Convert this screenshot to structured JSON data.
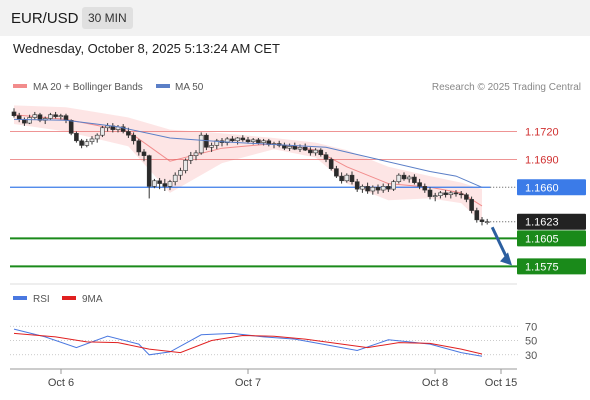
{
  "header": {
    "symbol": "EUR/USD",
    "timeframe": "30 MIN"
  },
  "timestamp": "Wednesday, October 8, 2025 5:13:24 AM CET",
  "legend": {
    "bollinger": "MA 20 + Bollinger Bands",
    "ma50": "MA 50",
    "copyright": "Research © 2025 Trading Central"
  },
  "colors": {
    "up": "#e8e8e8",
    "down": "#2a2a2a",
    "ma20": "#f28c8c",
    "ma50": "#5b7fc7",
    "band": "#fcdcdc",
    "resistance": "#e87070",
    "pivot": "#3b7be8",
    "support": "#1a8a1a",
    "rsi": "#4a78e0",
    "rsi_ma": "#e02020",
    "arrow": "#2c5fa0"
  },
  "chart_data": [
    {
      "type": "candlestick",
      "price_range": [
        1.1556,
        1.1756
      ],
      "x_labels": [
        "Oct 6",
        "Oct 7",
        "Oct 8",
        "Oct 15"
      ],
      "series": [
        {
          "name": "MA 20 + Bollinger Bands"
        },
        {
          "name": "MA 50"
        }
      ],
      "candles": [
        [
          1.1741,
          1.1745,
          1.1735,
          1.1737
        ],
        [
          1.1737,
          1.174,
          1.173,
          1.1733
        ],
        [
          1.1733,
          1.1735,
          1.1726,
          1.1729
        ],
        [
          1.1729,
          1.1738,
          1.1728,
          1.1735
        ],
        [
          1.1735,
          1.1741,
          1.1733,
          1.1738
        ],
        [
          1.1738,
          1.174,
          1.173,
          1.1732
        ],
        [
          1.1732,
          1.1736,
          1.1728,
          1.1734
        ],
        [
          1.1734,
          1.174,
          1.1732,
          1.1738
        ],
        [
          1.1738,
          1.1741,
          1.1734,
          1.1736
        ],
        [
          1.1736,
          1.1739,
          1.1733,
          1.1737
        ],
        [
          1.1737,
          1.1739,
          1.1729,
          1.1732
        ],
        [
          1.1732,
          1.1733,
          1.1716,
          1.1718
        ],
        [
          1.1718,
          1.172,
          1.1708,
          1.171
        ],
        [
          1.171,
          1.1712,
          1.1702,
          1.1705
        ],
        [
          1.1705,
          1.1712,
          1.1703,
          1.1709
        ],
        [
          1.1709,
          1.1715,
          1.1706,
          1.1712
        ],
        [
          1.1712,
          1.1718,
          1.1708,
          1.1716
        ],
        [
          1.1716,
          1.1726,
          1.1714,
          1.1724
        ],
        [
          1.1724,
          1.1729,
          1.172,
          1.1726
        ],
        [
          1.1726,
          1.1729,
          1.1719,
          1.1722
        ],
        [
          1.1722,
          1.1727,
          1.1719,
          1.1725
        ],
        [
          1.1725,
          1.1728,
          1.1718,
          1.172
        ],
        [
          1.172,
          1.1724,
          1.1713,
          1.1716
        ],
        [
          1.1716,
          1.1719,
          1.1706,
          1.171
        ],
        [
          1.171,
          1.1712,
          1.1694,
          1.1698
        ],
        [
          1.1698,
          1.1701,
          1.1688,
          1.1694
        ],
        [
          1.1694,
          1.1695,
          1.1648,
          1.1661
        ],
        [
          1.1661,
          1.1669,
          1.1659,
          1.1667
        ],
        [
          1.1667,
          1.167,
          1.1658,
          1.1664
        ],
        [
          1.1664,
          1.1669,
          1.1656,
          1.1661
        ],
        [
          1.1661,
          1.1668,
          1.1657,
          1.1666
        ],
        [
          1.1666,
          1.1676,
          1.1662,
          1.1673
        ],
        [
          1.1673,
          1.1681,
          1.1668,
          1.1678
        ],
        [
          1.1678,
          1.1691,
          1.1675,
          1.1689
        ],
        [
          1.1689,
          1.1698,
          1.1685,
          1.1694
        ],
        [
          1.1694,
          1.17,
          1.1689,
          1.1697
        ],
        [
          1.1697,
          1.1719,
          1.1695,
          1.1716
        ],
        [
          1.1716,
          1.1718,
          1.17,
          1.1703
        ],
        [
          1.1703,
          1.1708,
          1.1698,
          1.1705
        ],
        [
          1.1705,
          1.1712,
          1.1701,
          1.171
        ],
        [
          1.171,
          1.1713,
          1.1704,
          1.1708
        ],
        [
          1.1708,
          1.1714,
          1.1705,
          1.1712
        ],
        [
          1.1712,
          1.1715,
          1.1708,
          1.171
        ],
        [
          1.171,
          1.1714,
          1.1706,
          1.1713
        ],
        [
          1.1713,
          1.1716,
          1.1709,
          1.1711
        ],
        [
          1.1711,
          1.1714,
          1.1707,
          1.1709
        ],
        [
          1.1709,
          1.1713,
          1.1706,
          1.1711
        ],
        [
          1.1711,
          1.1713,
          1.1706,
          1.1708
        ],
        [
          1.1708,
          1.1712,
          1.1705,
          1.171
        ],
        [
          1.171,
          1.1712,
          1.1704,
          1.1706
        ],
        [
          1.1706,
          1.1709,
          1.1702,
          1.1707
        ],
        [
          1.1707,
          1.171,
          1.1703,
          1.1705
        ],
        [
          1.1705,
          1.1708,
          1.17,
          1.1702
        ],
        [
          1.1702,
          1.1707,
          1.1699,
          1.1704
        ],
        [
          1.1704,
          1.1708,
          1.17,
          1.1701
        ],
        [
          1.1701,
          1.1706,
          1.1698,
          1.1703
        ],
        [
          1.1703,
          1.1707,
          1.1699,
          1.17
        ],
        [
          1.17,
          1.1703,
          1.1694,
          1.1697
        ],
        [
          1.1697,
          1.1702,
          1.1694,
          1.17
        ],
        [
          1.17,
          1.1702,
          1.1693,
          1.1695
        ],
        [
          1.1695,
          1.1698,
          1.1687,
          1.169
        ],
        [
          1.169,
          1.1692,
          1.1678,
          1.168
        ],
        [
          1.168,
          1.1683,
          1.167,
          1.1672
        ],
        [
          1.1672,
          1.1676,
          1.1664,
          1.1667
        ],
        [
          1.1667,
          1.1675,
          1.1665,
          1.1673
        ],
        [
          1.1673,
          1.1677,
          1.1663,
          1.1666
        ],
        [
          1.1666,
          1.1669,
          1.1655,
          1.1658
        ],
        [
          1.1658,
          1.1663,
          1.1654,
          1.1661
        ],
        [
          1.1661,
          1.1665,
          1.1653,
          1.1656
        ],
        [
          1.1656,
          1.1662,
          1.1652,
          1.166
        ],
        [
          1.166,
          1.1663,
          1.1653,
          1.1657
        ],
        [
          1.1657,
          1.1664,
          1.1654,
          1.1661
        ],
        [
          1.1661,
          1.1664,
          1.1655,
          1.1658
        ],
        [
          1.1658,
          1.1668,
          1.1656,
          1.1666
        ],
        [
          1.1666,
          1.1675,
          1.1664,
          1.1673
        ],
        [
          1.1673,
          1.1676,
          1.1667,
          1.1669
        ],
        [
          1.1669,
          1.1673,
          1.1665,
          1.1671
        ],
        [
          1.1671,
          1.1674,
          1.1663,
          1.1665
        ],
        [
          1.1665,
          1.1669,
          1.1658,
          1.1661
        ],
        [
          1.1661,
          1.1664,
          1.1654,
          1.1657
        ],
        [
          1.1657,
          1.166,
          1.1647,
          1.165
        ],
        [
          1.165,
          1.1654,
          1.1645,
          1.1651
        ],
        [
          1.1651,
          1.1656,
          1.1648,
          1.1654
        ],
        [
          1.1654,
          1.1657,
          1.1649,
          1.1652
        ],
        [
          1.1652,
          1.1656,
          1.1648,
          1.1654
        ],
        [
          1.1654,
          1.1657,
          1.165,
          1.1653
        ],
        [
          1.1653,
          1.1656,
          1.1648,
          1.1652
        ],
        [
          1.1652,
          1.1654,
          1.1644,
          1.1647
        ],
        [
          1.1647,
          1.165,
          1.1632,
          1.1635
        ],
        [
          1.1635,
          1.1638,
          1.1622,
          1.1625
        ],
        [
          1.1625,
          1.1628,
          1.1619,
          1.1623
        ],
        [
          1.1623,
          1.1626,
          1.162,
          1.1623
        ]
      ],
      "bands": {
        "x_index": [
          0,
          10,
          22,
          30,
          40,
          50,
          58,
          64,
          72,
          80,
          86,
          90
        ],
        "mid": [
          1.1738,
          1.1733,
          1.172,
          1.1688,
          1.1702,
          1.1707,
          1.17,
          1.1682,
          1.1664,
          1.166,
          1.1654,
          1.164
        ],
        "upper": [
          1.1748,
          1.1746,
          1.1735,
          1.1722,
          1.1718,
          1.1713,
          1.1708,
          1.17,
          1.1682,
          1.1672,
          1.1665,
          1.1658
        ],
        "lower": [
          1.1728,
          1.172,
          1.1704,
          1.1654,
          1.1686,
          1.1701,
          1.1692,
          1.1664,
          1.1646,
          1.1648,
          1.1643,
          1.1622
        ]
      },
      "ma50": {
        "x_index": [
          0,
          10,
          20,
          30,
          40,
          50,
          60,
          70,
          80,
          85,
          90
        ],
        "values": [
          1.1733,
          1.1732,
          1.1725,
          1.1713,
          1.1709,
          1.1706,
          1.1703,
          1.169,
          1.1677,
          1.1672,
          1.166
        ]
      },
      "levels": [
        {
          "value": 1.172,
          "label": "1.1720",
          "kind": "resistance"
        },
        {
          "value": 1.169,
          "label": "1.1690",
          "kind": "resistance"
        },
        {
          "value": 1.166,
          "label": "1.1660",
          "kind": "pivot"
        },
        {
          "value": 1.1623,
          "label": "1.1623",
          "kind": "last"
        },
        {
          "value": 1.1605,
          "label": "1.1605",
          "kind": "support"
        },
        {
          "value": 1.1575,
          "label": "1.1575",
          "kind": "support"
        }
      ],
      "forecast": {
        "from_price": 1.1617,
        "to_price": 1.1576
      }
    },
    {
      "type": "line",
      "ylim": [
        10,
        90
      ],
      "y_ticks": [
        70,
        50,
        30
      ],
      "series": [
        {
          "name": "RSI",
          "x_index": [
            0,
            6,
            12,
            18,
            24,
            26,
            30,
            36,
            42,
            48,
            54,
            60,
            66,
            72,
            76,
            80,
            86,
            90
          ],
          "values": [
            66,
            55,
            40,
            56,
            45,
            30,
            34,
            58,
            60,
            55,
            52,
            44,
            36,
            51,
            48,
            45,
            33,
            28
          ]
        },
        {
          "name": "9MA",
          "x_index": [
            0,
            8,
            14,
            20,
            26,
            32,
            38,
            44,
            50,
            56,
            62,
            68,
            74,
            80,
            86,
            90
          ],
          "values": [
            60,
            55,
            48,
            47,
            38,
            33,
            50,
            57,
            56,
            52,
            46,
            40,
            47,
            46,
            38,
            31
          ]
        }
      ]
    }
  ]
}
